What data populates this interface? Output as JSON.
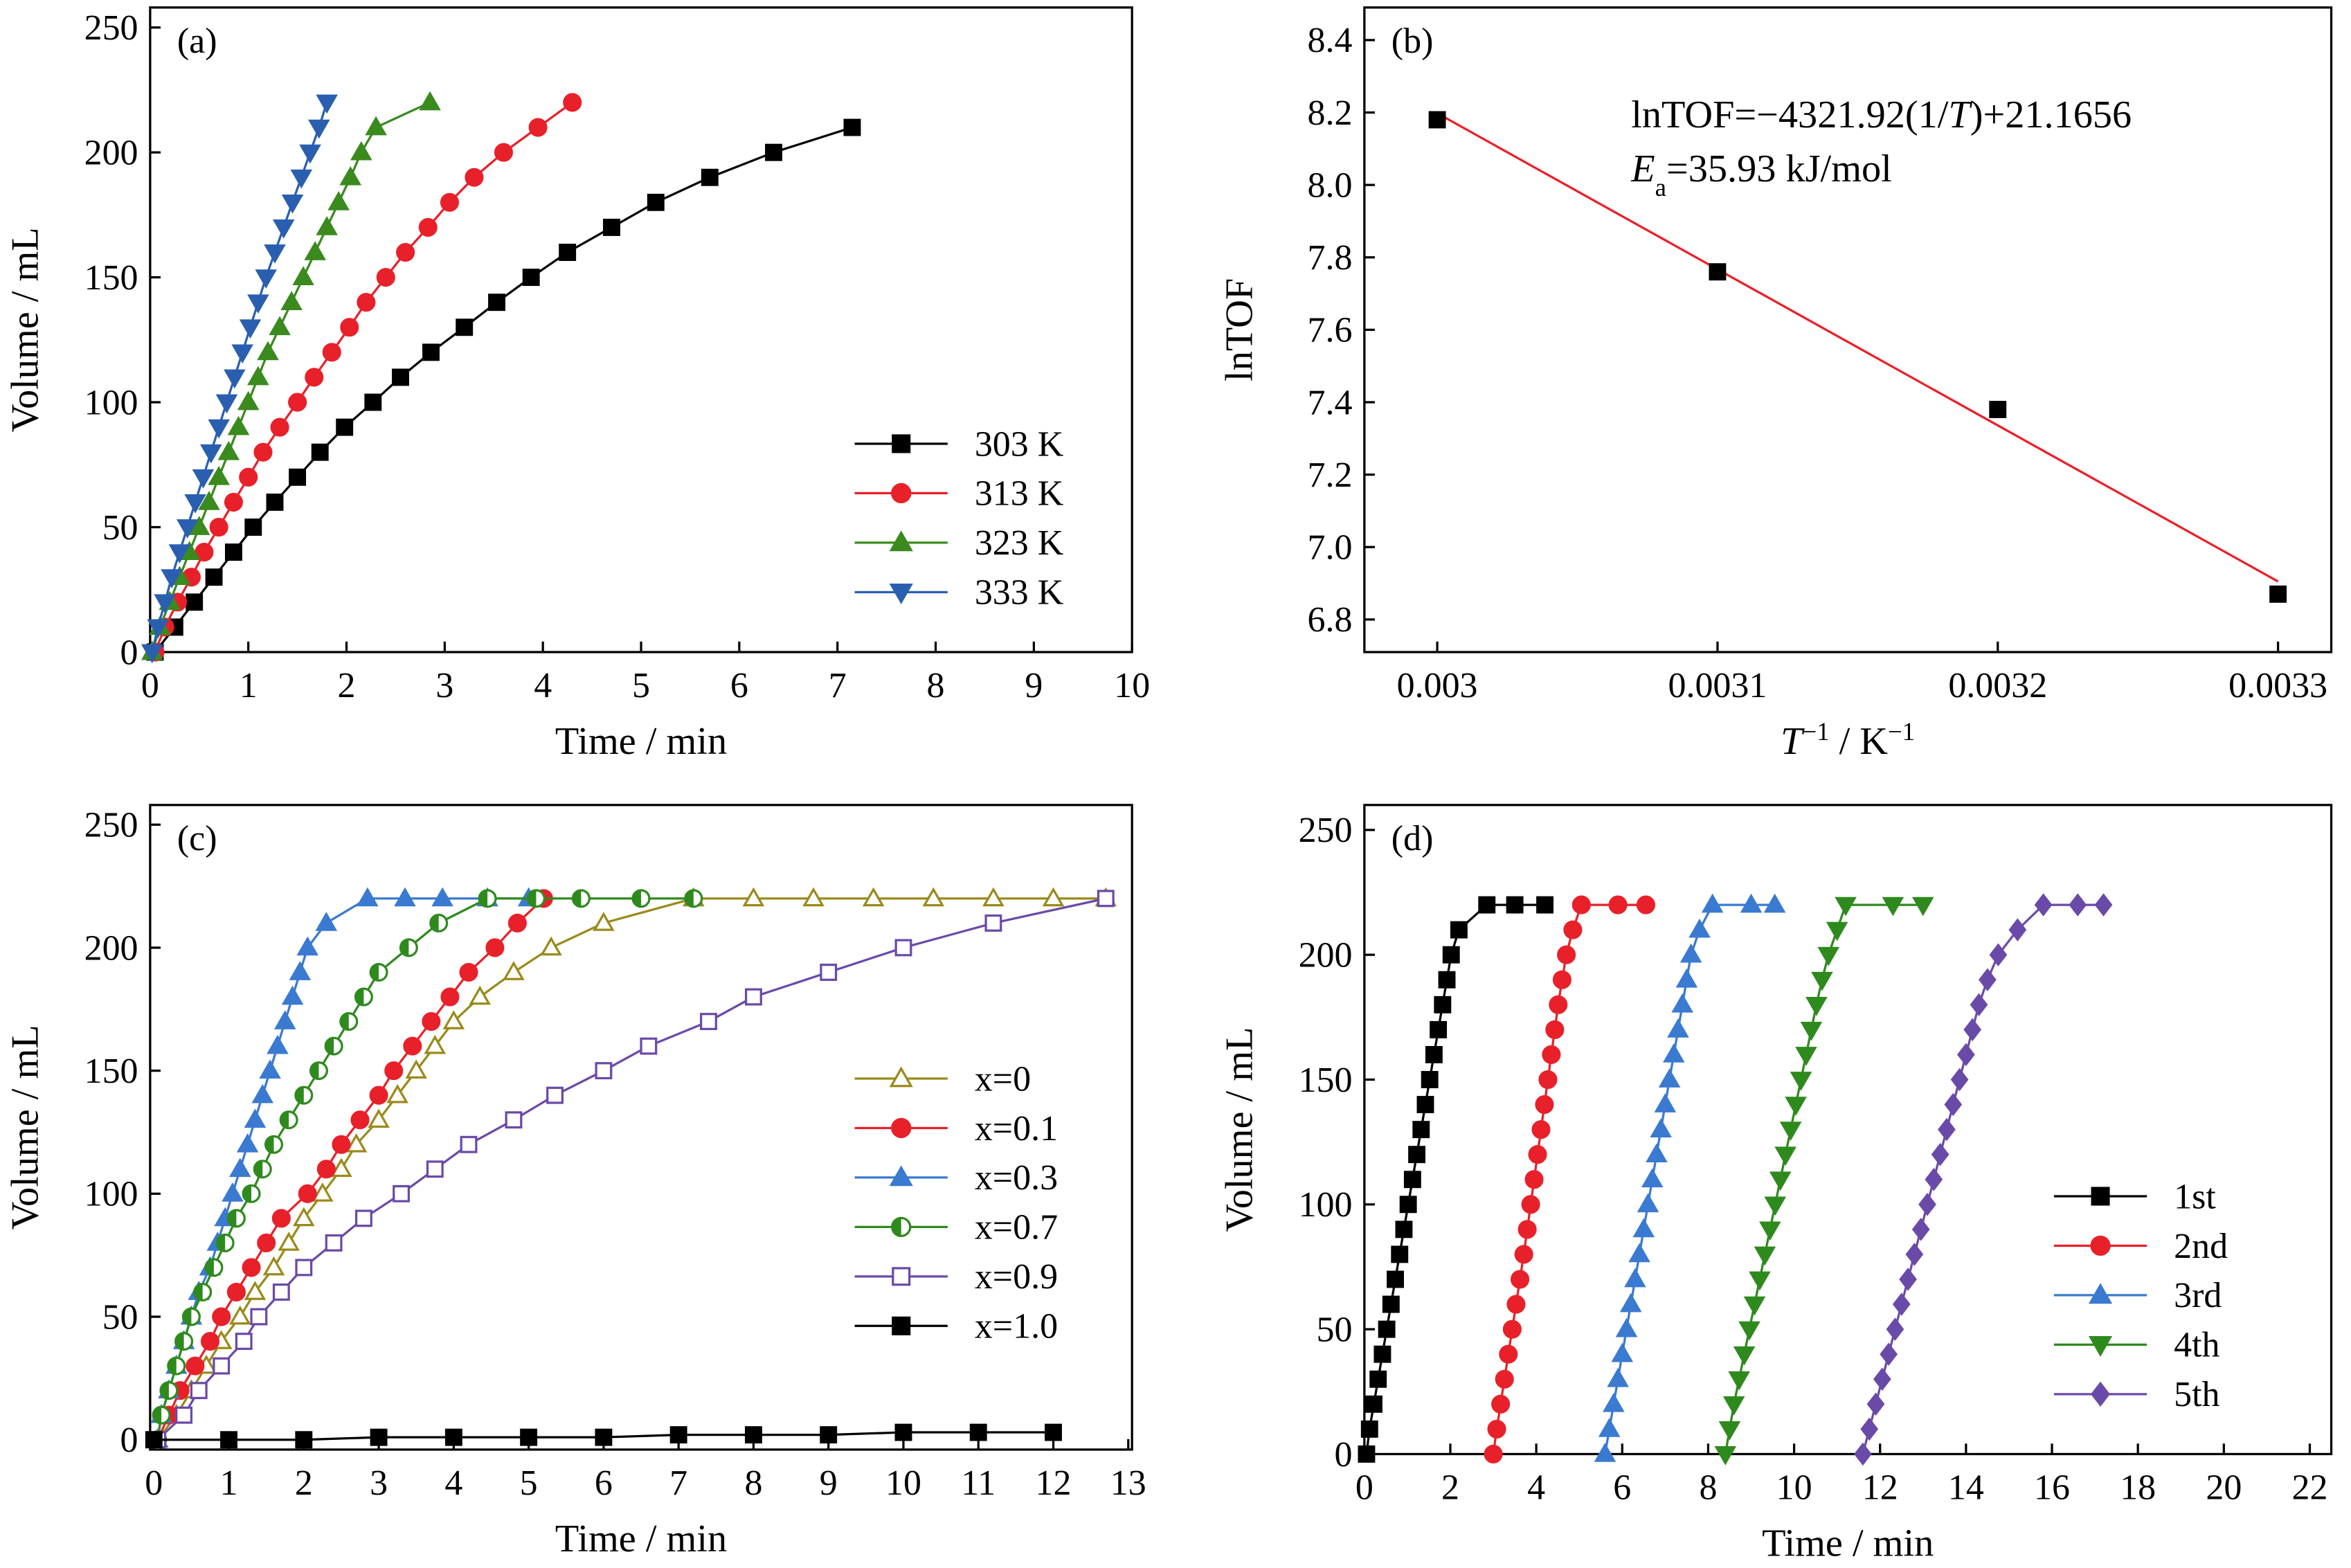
{
  "chart_data": [
    {
      "type": "line",
      "panel_label": "(a)",
      "xlabel": "Time / min",
      "ylabel": "Volume / mL",
      "xlim": [
        0,
        10
      ],
      "ylim": [
        0,
        258
      ],
      "xticks": [
        0,
        1,
        2,
        3,
        4,
        5,
        6,
        7,
        8,
        9,
        10
      ],
      "yticks": [
        0,
        50,
        100,
        150,
        200,
        250
      ],
      "legend": "lower right",
      "series": [
        {
          "name": "303 K",
          "color": "#000000",
          "marker": "square",
          "fill": "solid",
          "x": [
            0.05,
            0.25,
            0.45,
            0.65,
            0.85,
            1.05,
            1.27,
            1.5,
            1.73,
            1.98,
            2.27,
            2.55,
            2.86,
            3.2,
            3.53,
            3.88,
            4.25,
            4.7,
            5.15,
            5.7,
            6.35,
            7.15
          ],
          "values": [
            0,
            10,
            20,
            30,
            40,
            50,
            60,
            70,
            80,
            90,
            100,
            110,
            120,
            130,
            140,
            150,
            160,
            170,
            180,
            190,
            200,
            210
          ]
        },
        {
          "name": "313 K",
          "color": "#e8202a",
          "marker": "circle",
          "fill": "solid",
          "x": [
            0.05,
            0.15,
            0.28,
            0.42,
            0.55,
            0.7,
            0.85,
            1.0,
            1.15,
            1.32,
            1.5,
            1.67,
            1.85,
            2.03,
            2.2,
            2.4,
            2.6,
            2.83,
            3.05,
            3.3,
            3.6,
            3.95,
            4.3
          ],
          "values": [
            0,
            10,
            20,
            30,
            40,
            50,
            60,
            70,
            80,
            90,
            100,
            110,
            120,
            130,
            140,
            150,
            160,
            170,
            180,
            190,
            200,
            210,
            220
          ]
        },
        {
          "name": "323 K",
          "color": "#3a8a1e",
          "marker": "triangle",
          "fill": "solid",
          "x": [
            0.02,
            0.1,
            0.2,
            0.3,
            0.4,
            0.5,
            0.6,
            0.7,
            0.8,
            0.9,
            1.0,
            1.1,
            1.2,
            1.32,
            1.44,
            1.56,
            1.68,
            1.8,
            1.92,
            2.04,
            2.15,
            2.3,
            2.85
          ],
          "values": [
            0,
            10,
            20,
            30,
            40,
            50,
            60,
            70,
            80,
            90,
            100,
            110,
            120,
            130,
            140,
            150,
            160,
            170,
            180,
            190,
            200,
            210,
            220
          ]
        },
        {
          "name": "333 K",
          "color": "#2a5fb0",
          "marker": "triangle-down",
          "fill": "solid",
          "x": [
            0.02,
            0.08,
            0.15,
            0.22,
            0.3,
            0.38,
            0.46,
            0.54,
            0.62,
            0.7,
            0.78,
            0.86,
            0.94,
            1.02,
            1.1,
            1.18,
            1.27,
            1.36,
            1.45,
            1.54,
            1.63,
            1.72,
            1.8
          ],
          "values": [
            0,
            10,
            20,
            30,
            40,
            50,
            60,
            70,
            80,
            90,
            100,
            110,
            120,
            130,
            140,
            150,
            160,
            170,
            180,
            190,
            200,
            210,
            220
          ]
        }
      ]
    },
    {
      "type": "line",
      "panel_label": "(b)",
      "xlabel_parts": [
        "T",
        "−1",
        " / K",
        "−1"
      ],
      "ylabel": "lnTOF",
      "xlim": [
        0.002974,
        0.003319
      ],
      "ylim": [
        6.71,
        8.49
      ],
      "xticks": [
        0.003,
        0.0031,
        0.0032,
        0.0033
      ],
      "yticks": [
        6.8,
        {
          "value": 7,
          "label": "7.0"
        },
        7.2,
        7.4,
        7.6,
        7.8,
        {
          "value": 8,
          "label": "8.0"
        },
        8.2,
        8.4
      ],
      "annotations": [
        {
          "parts": [
            "lnTOF=−4321.92(1/",
            "T",
            ")+21.1656"
          ]
        },
        {
          "parts": [
            "E",
            "a",
            "=35.93 kJ/mol"
          ]
        }
      ],
      "series": [
        {
          "color": "#e8202a",
          "marker": "none",
          "x": [
            0.003,
            0.0033
          ],
          "values": [
            8.198,
            6.905
          ]
        },
        {
          "color": "#000000",
          "marker": "square",
          "fill": "solid",
          "line": false,
          "x": [
            0.003,
            0.0031,
            0.0032,
            0.0033
          ],
          "values": [
            8.18,
            7.76,
            7.38,
            6.87
          ]
        }
      ]
    },
    {
      "type": "line",
      "panel_label": "(c)",
      "xlabel": "Time / min",
      "ylabel": "Volume / mL",
      "xlim": [
        -0.05,
        13.05
      ],
      "ylim": [
        -4,
        258
      ],
      "xticks": [
        0,
        1,
        2,
        3,
        4,
        5,
        6,
        7,
        8,
        9,
        10,
        11,
        12,
        13
      ],
      "yticks": [
        0,
        50,
        100,
        150,
        200,
        250
      ],
      "legend": "center right",
      "series": [
        {
          "name": "x=0",
          "color": "#9a8a1a",
          "marker": "triangle",
          "fill": "open",
          "x": [
            0.05,
            0.3,
            0.5,
            0.7,
            0.9,
            1.15,
            1.35,
            1.6,
            1.8,
            2.0,
            2.25,
            2.5,
            2.7,
            3.0,
            3.25,
            3.5,
            3.75,
            4.0,
            4.35,
            4.8,
            5.3,
            6.0,
            7.2,
            8.0,
            8.8,
            9.6,
            10.4,
            11.2,
            12.0,
            12.7
          ],
          "values": [
            0,
            10,
            20,
            30,
            40,
            50,
            60,
            70,
            80,
            90,
            100,
            110,
            120,
            130,
            140,
            150,
            160,
            170,
            180,
            190,
            200,
            210,
            220,
            220,
            220,
            220,
            220,
            220,
            220,
            220
          ]
        },
        {
          "name": "x=0.1",
          "color": "#e8202a",
          "marker": "circle",
          "fill": "solid",
          "x": [
            0.05,
            0.2,
            0.35,
            0.55,
            0.75,
            0.9,
            1.1,
            1.3,
            1.5,
            1.7,
            2.05,
            2.3,
            2.5,
            2.75,
            3.0,
            3.2,
            3.45,
            3.7,
            3.95,
            4.2,
            4.55,
            4.85,
            5.2
          ],
          "values": [
            0,
            10,
            20,
            30,
            40,
            50,
            60,
            70,
            80,
            90,
            100,
            110,
            120,
            130,
            140,
            150,
            160,
            170,
            180,
            190,
            200,
            210,
            220
          ]
        },
        {
          "name": "x=0.3",
          "color": "#3a7ad0",
          "marker": "triangle",
          "fill": "solid",
          "x": [
            0.05,
            0.1,
            0.2,
            0.3,
            0.4,
            0.5,
            0.6,
            0.75,
            0.85,
            0.95,
            1.05,
            1.15,
            1.25,
            1.35,
            1.45,
            1.55,
            1.65,
            1.75,
            1.85,
            1.95,
            2.05,
            2.3,
            2.85,
            3.35,
            3.85,
            4.45,
            5.0
          ],
          "values": [
            0,
            10,
            20,
            30,
            40,
            50,
            60,
            70,
            80,
            90,
            100,
            110,
            120,
            130,
            140,
            150,
            160,
            170,
            180,
            190,
            200,
            210,
            220,
            220,
            220,
            220,
            220
          ]
        },
        {
          "name": "x=0.7",
          "color": "#2f8a1e",
          "marker": "circle",
          "fill": "half",
          "x": [
            0.05,
            0.1,
            0.2,
            0.3,
            0.4,
            0.5,
            0.65,
            0.8,
            0.95,
            1.1,
            1.3,
            1.45,
            1.6,
            1.8,
            2.0,
            2.2,
            2.4,
            2.6,
            2.8,
            3.0,
            3.4,
            3.8,
            4.45,
            5.1,
            5.7,
            6.5,
            7.2
          ],
          "values": [
            0,
            10,
            20,
            30,
            40,
            50,
            60,
            70,
            80,
            90,
            100,
            110,
            120,
            130,
            140,
            150,
            160,
            170,
            180,
            190,
            200,
            210,
            220,
            220,
            220,
            220,
            220
          ]
        },
        {
          "name": "x=0.9",
          "color": "#6a4aa8",
          "marker": "square",
          "fill": "open",
          "x": [
            0.05,
            0.4,
            0.6,
            0.9,
            1.2,
            1.4,
            1.7,
            2.0,
            2.4,
            2.8,
            3.3,
            3.75,
            4.2,
            4.8,
            5.35,
            6.0,
            6.6,
            7.4,
            8.0,
            9.0,
            10.0,
            11.2,
            12.7
          ],
          "values": [
            0,
            10,
            20,
            30,
            40,
            50,
            60,
            70,
            80,
            90,
            100,
            110,
            120,
            130,
            140,
            150,
            160,
            170,
            180,
            190,
            200,
            210,
            220
          ]
        },
        {
          "name": "x=1.0",
          "color": "#000000",
          "marker": "square",
          "fill": "solid",
          "x": [
            0,
            1,
            2,
            3,
            4,
            5,
            6,
            7,
            8,
            9,
            10,
            11,
            12
          ],
          "values": [
            0,
            0,
            0,
            1,
            1,
            1,
            1,
            2,
            2,
            2,
            3,
            3,
            3
          ]
        }
      ]
    },
    {
      "type": "line",
      "panel_label": "(d)",
      "xlabel": "Time / min",
      "ylabel": "Volume / mL",
      "xlim": [
        0,
        22.5
      ],
      "ylim": [
        0,
        260
      ],
      "xticks": [
        0,
        2,
        4,
        6,
        8,
        10,
        12,
        14,
        16,
        18,
        20,
        22
      ],
      "yticks": [
        0,
        50,
        100,
        150,
        200,
        250
      ],
      "legend": "lower right",
      "series": [
        {
          "name": "1st",
          "color": "#000000",
          "marker": "square",
          "fill": "solid",
          "x": [
            0.05,
            0.12,
            0.22,
            0.32,
            0.42,
            0.52,
            0.62,
            0.72,
            0.82,
            0.92,
            1.02,
            1.12,
            1.22,
            1.32,
            1.42,
            1.52,
            1.62,
            1.72,
            1.82,
            1.92,
            2.02,
            2.2,
            2.85,
            3.5,
            4.2
          ],
          "values": [
            0,
            10,
            20,
            30,
            40,
            50,
            60,
            70,
            80,
            90,
            100,
            110,
            120,
            130,
            140,
            150,
            160,
            170,
            180,
            190,
            200,
            210,
            220,
            220,
            220
          ]
        },
        {
          "name": "2nd",
          "color": "#e8202a",
          "marker": "circle",
          "fill": "solid",
          "x": [
            3.0,
            3.08,
            3.17,
            3.26,
            3.35,
            3.44,
            3.53,
            3.62,
            3.71,
            3.79,
            3.87,
            3.95,
            4.03,
            4.11,
            4.19,
            4.27,
            4.35,
            4.43,
            4.51,
            4.6,
            4.7,
            4.85,
            5.05,
            5.9,
            6.55
          ],
          "values": [
            0,
            10,
            20,
            30,
            40,
            50,
            60,
            70,
            80,
            90,
            100,
            110,
            120,
            130,
            140,
            150,
            160,
            170,
            180,
            190,
            200,
            210,
            220,
            220,
            220
          ]
        },
        {
          "name": "3rd",
          "color": "#3a7ad0",
          "marker": "triangle",
          "fill": "solid",
          "x": [
            5.6,
            5.7,
            5.8,
            5.9,
            6.0,
            6.1,
            6.2,
            6.3,
            6.4,
            6.5,
            6.6,
            6.7,
            6.8,
            6.9,
            7.0,
            7.1,
            7.2,
            7.3,
            7.4,
            7.5,
            7.6,
            7.8,
            8.1,
            9.0,
            9.55
          ],
          "values": [
            0,
            10,
            20,
            30,
            40,
            50,
            60,
            70,
            80,
            90,
            100,
            110,
            120,
            130,
            140,
            150,
            160,
            170,
            180,
            190,
            200,
            210,
            220,
            220,
            220
          ]
        },
        {
          "name": "4th",
          "color": "#2f8a1e",
          "marker": "triangle-down",
          "fill": "solid",
          "x": [
            8.4,
            8.5,
            8.6,
            8.72,
            8.84,
            8.96,
            9.08,
            9.2,
            9.32,
            9.44,
            9.56,
            9.68,
            9.8,
            9.92,
            10.04,
            10.16,
            10.28,
            10.4,
            10.52,
            10.65,
            10.8,
            11.0,
            11.2,
            12.3,
            13.0
          ],
          "values": [
            0,
            10,
            20,
            30,
            40,
            50,
            60,
            70,
            80,
            90,
            100,
            110,
            120,
            130,
            140,
            150,
            160,
            170,
            180,
            190,
            200,
            210,
            220,
            220,
            220
          ]
        },
        {
          "name": "5th",
          "color": "#6a4aa8",
          "marker": "diamond",
          "fill": "solid",
          "x": [
            11.6,
            11.75,
            11.9,
            12.05,
            12.2,
            12.35,
            12.5,
            12.65,
            12.8,
            12.95,
            13.1,
            13.25,
            13.4,
            13.55,
            13.7,
            13.85,
            14.0,
            14.15,
            14.3,
            14.5,
            14.75,
            15.2,
            15.8,
            16.6,
            17.2
          ],
          "values": [
            0,
            10,
            20,
            30,
            40,
            50,
            60,
            70,
            80,
            90,
            100,
            110,
            120,
            130,
            140,
            150,
            160,
            170,
            180,
            190,
            200,
            210,
            220,
            220,
            220
          ]
        }
      ]
    }
  ]
}
